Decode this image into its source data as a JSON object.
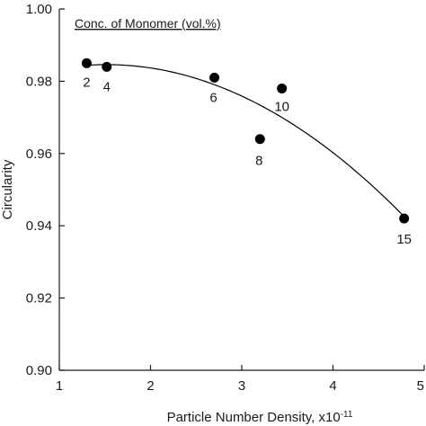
{
  "chart_data": {
    "type": "scatter",
    "xlabel": "Particle Number Density, x10",
    "xlabel_exponent": "-11",
    "ylabel": "Circularity",
    "xlim": [
      1,
      5
    ],
    "ylim": [
      0.9,
      1.0
    ],
    "xticks": [
      "1",
      "2",
      "3",
      "4",
      "5"
    ],
    "yticks": [
      "0.90",
      "0.92",
      "0.94",
      "0.96",
      "0.98",
      "1.00"
    ],
    "legend_title": "Conc. of Monomer (vol.%)",
    "grid": false,
    "points": [
      {
        "x": 1.3,
        "y": 0.985,
        "label": "2"
      },
      {
        "x": 1.52,
        "y": 0.984,
        "label": "4"
      },
      {
        "x": 2.7,
        "y": 0.981,
        "label": "6"
      },
      {
        "x": 3.2,
        "y": 0.964,
        "label": "8"
      },
      {
        "x": 3.44,
        "y": 0.978,
        "label": "10"
      },
      {
        "x": 4.78,
        "y": 0.942,
        "label": "15"
      }
    ],
    "fit_curve": {
      "type": "quadratic",
      "x_range": [
        1.3,
        4.78
      ]
    },
    "colors": {
      "points": "#000000",
      "curve": "#000000",
      "axis": "#1a1a1a"
    }
  }
}
